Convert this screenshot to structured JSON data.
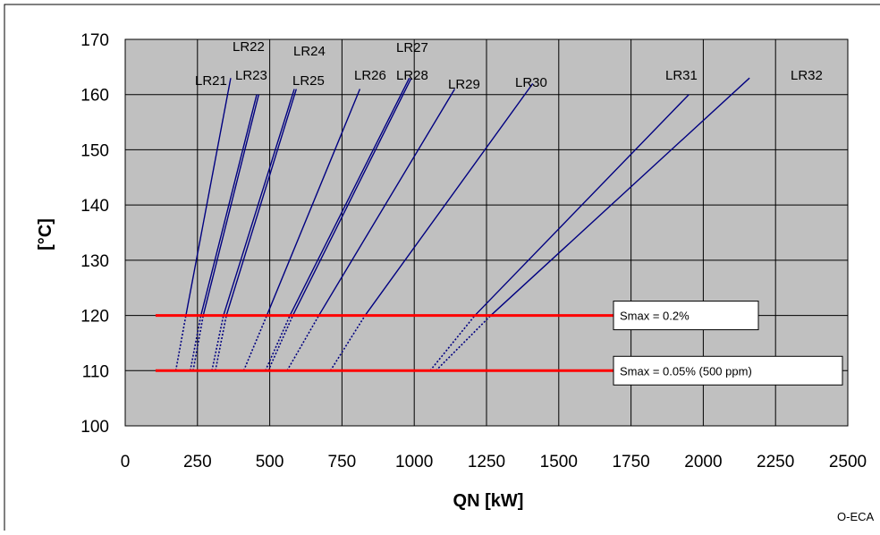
{
  "chart_data": {
    "type": "line",
    "xlabel": "QN [kW]",
    "ylabel": "[°C]",
    "xlim": [
      0,
      2500
    ],
    "ylim": [
      100,
      170
    ],
    "x_ticks": [
      0,
      250,
      500,
      750,
      1000,
      1250,
      1500,
      1750,
      2000,
      2250,
      2500
    ],
    "y_ticks": [
      100,
      110,
      120,
      130,
      140,
      150,
      160,
      170
    ],
    "grid": true,
    "background": "#c0c0c0",
    "series_color": "#000080",
    "limit_color": "#ff0000",
    "series": [
      {
        "name": "LR21",
        "solid": [
          [
            210,
            120
          ],
          [
            365,
            163
          ]
        ],
        "dotted": [
          [
            175,
            110
          ],
          [
            210,
            120
          ]
        ]
      },
      {
        "name": "LR22",
        "solid": [
          [
            262,
            120
          ],
          [
            455,
            160
          ]
        ],
        "dotted": [
          [
            225,
            110
          ],
          [
            262,
            120
          ]
        ]
      },
      {
        "name": "LR23",
        "solid": [
          [
            270,
            120
          ],
          [
            462,
            160
          ]
        ],
        "dotted": [
          [
            235,
            110
          ],
          [
            270,
            120
          ]
        ]
      },
      {
        "name": "LR24",
        "solid": [
          [
            340,
            120
          ],
          [
            585,
            161
          ]
        ],
        "dotted": [
          [
            300,
            110
          ],
          [
            340,
            120
          ]
        ]
      },
      {
        "name": "LR25",
        "solid": [
          [
            350,
            120
          ],
          [
            592,
            161
          ]
        ],
        "dotted": [
          [
            312,
            110
          ],
          [
            350,
            120
          ]
        ]
      },
      {
        "name": "LR26",
        "solid": [
          [
            490,
            120
          ],
          [
            812,
            161
          ]
        ],
        "dotted": [
          [
            410,
            110
          ],
          [
            490,
            120
          ]
        ]
      },
      {
        "name": "LR27",
        "solid": [
          [
            570,
            120
          ],
          [
            983,
            163
          ]
        ],
        "dotted": [
          [
            485,
            110
          ],
          [
            570,
            120
          ]
        ]
      },
      {
        "name": "LR28",
        "solid": [
          [
            580,
            120
          ],
          [
            990,
            163
          ]
        ],
        "dotted": [
          [
            495,
            110
          ],
          [
            580,
            120
          ]
        ]
      },
      {
        "name": "LR29",
        "solid": [
          [
            670,
            120
          ],
          [
            1140,
            161
          ]
        ],
        "dotted": [
          [
            560,
            110
          ],
          [
            670,
            120
          ]
        ]
      },
      {
        "name": "LR30",
        "solid": [
          [
            830,
            120
          ],
          [
            1410,
            162
          ]
        ],
        "dotted": [
          [
            710,
            110
          ],
          [
            830,
            120
          ]
        ]
      },
      {
        "name": "LR31",
        "solid": [
          [
            1210,
            120
          ],
          [
            1950,
            160
          ]
        ],
        "dotted": [
          [
            1055,
            110
          ],
          [
            1210,
            120
          ]
        ]
      },
      {
        "name": "LR32",
        "solid": [
          [
            1265,
            120
          ],
          [
            2160,
            163
          ]
        ],
        "dotted": [
          [
            1075,
            110
          ],
          [
            1265,
            120
          ]
        ]
      }
    ],
    "limit_lines": [
      {
        "label": "Smax = 0.2%",
        "y": 120,
        "x": [
          105,
          1700
        ]
      },
      {
        "label": "Smax = 0.05% (500 ppm)",
        "y": 110,
        "x": [
          105,
          1700
        ]
      }
    ]
  },
  "footer": {
    "code": "O-ECA"
  }
}
